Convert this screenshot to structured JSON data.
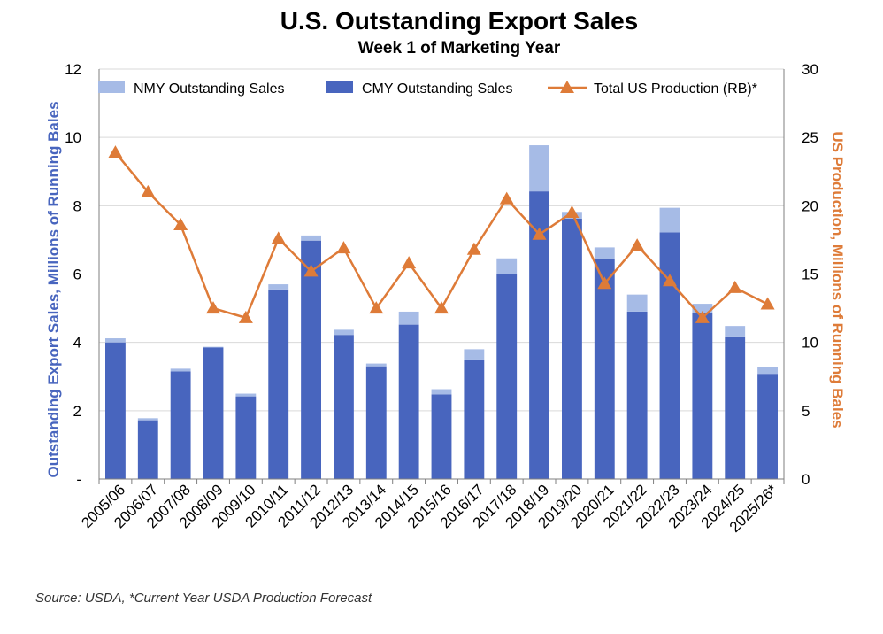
{
  "chart_data": {
    "type": "bar",
    "title": "U.S. Outstanding Export Sales",
    "subtitle": "Week 1 of Marketing Year",
    "ylabel": "Outstanding Export Sales, Millions of Running Bales",
    "y2label": "US Production, Millions of Running Bales",
    "ylim": [
      0,
      12
    ],
    "y2lim": [
      0,
      30
    ],
    "yticks": [
      "-",
      "2",
      "4",
      "6",
      "8",
      "10",
      "12"
    ],
    "y2ticks": [
      "0",
      "5",
      "10",
      "15",
      "20",
      "25",
      "30"
    ],
    "categories": [
      "2005/06",
      "2006/07",
      "2007/08",
      "2008/09",
      "2009/10",
      "2010/11",
      "2011/12",
      "2012/13",
      "2013/14",
      "2014/15",
      "2015/16",
      "2016/17",
      "2017/18",
      "2018/19",
      "2019/20",
      "2020/21",
      "2021/22",
      "2022/23",
      "2023/24",
      "2024/25",
      "2025/26*"
    ],
    "series": [
      {
        "name": "CMY Outstanding Sales",
        "kind": "bar-stacked",
        "axis": "left",
        "values": [
          4.0,
          1.72,
          3.15,
          3.85,
          2.42,
          5.55,
          6.98,
          4.22,
          3.3,
          4.52,
          2.48,
          3.5,
          6.0,
          8.42,
          7.62,
          6.45,
          4.9,
          7.22,
          4.85,
          4.15,
          3.08
        ]
      },
      {
        "name": "NMY Outstanding Sales",
        "kind": "bar-stacked",
        "axis": "left",
        "values": [
          0.12,
          0.06,
          0.08,
          0.02,
          0.08,
          0.15,
          0.15,
          0.15,
          0.08,
          0.38,
          0.15,
          0.3,
          0.46,
          1.35,
          0.2,
          0.33,
          0.5,
          0.72,
          0.28,
          0.33,
          0.2
        ]
      },
      {
        "name": "Total US Production (RB)*",
        "kind": "line",
        "axis": "right",
        "values": [
          23.9,
          21.0,
          18.6,
          12.5,
          11.8,
          17.6,
          15.2,
          16.9,
          12.5,
          15.8,
          12.5,
          16.8,
          20.5,
          17.9,
          19.5,
          14.3,
          17.1,
          14.5,
          11.8,
          14.0,
          12.8
        ]
      }
    ],
    "legend": "top",
    "grid": "horizontal",
    "colors": {
      "cmy": "#4865BE",
      "nmy": "#A6BBE6",
      "production": "#DE7B38",
      "axis_left": "#4865BE",
      "axis_right": "#DE7B38",
      "gridline": "#D9D9D9"
    }
  },
  "source_note": "Source: USDA, *Current Year USDA Production Forecast"
}
